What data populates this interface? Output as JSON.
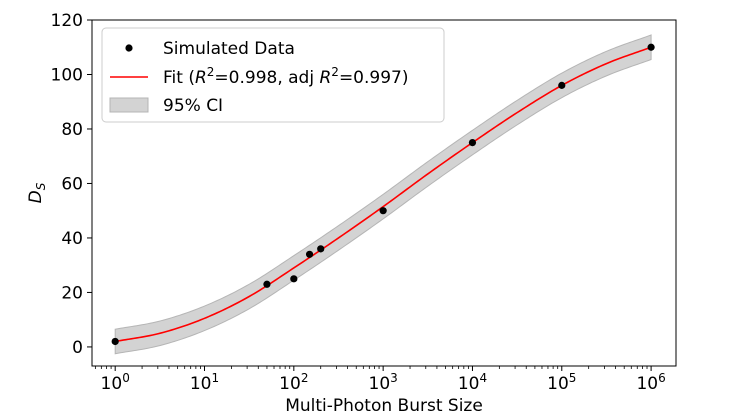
{
  "chart_data": {
    "type": "scatter",
    "xlabel": "Multi-Photon Burst Size",
    "ylabel": "D",
    "ylabel_sub": "S",
    "x_scale": "log",
    "xlim": [
      0.55,
      1900000
    ],
    "ylim": [
      -7,
      120
    ],
    "x_ticks": [
      {
        "value": 1,
        "base": "10",
        "exp": "0"
      },
      {
        "value": 10,
        "base": "10",
        "exp": "1"
      },
      {
        "value": 100,
        "base": "10",
        "exp": "2"
      },
      {
        "value": 1000,
        "base": "10",
        "exp": "3"
      },
      {
        "value": 10000,
        "base": "10",
        "exp": "4"
      },
      {
        "value": 100000,
        "base": "10",
        "exp": "5"
      },
      {
        "value": 1000000,
        "base": "10",
        "exp": "6"
      }
    ],
    "y_ticks": [
      0,
      20,
      40,
      60,
      80,
      100,
      120
    ],
    "grid": false,
    "legend": {
      "placement": "top-left",
      "items": [
        {
          "kind": "marker",
          "color": "#000000",
          "text": "Simulated Data"
        },
        {
          "kind": "line",
          "color": "#ff0000",
          "pre": "Fit (",
          "r": "R",
          "sup": "2",
          "mid": "=0.998, adj ",
          "post": "=0.997)"
        },
        {
          "kind": "band",
          "color": "#d3d3d3",
          "text": "95% CI"
        }
      ]
    },
    "scatter": {
      "name": "Simulated Data",
      "color": "#000000",
      "points": [
        {
          "x": 1,
          "y": 2
        },
        {
          "x": 50,
          "y": 23
        },
        {
          "x": 100,
          "y": 25
        },
        {
          "x": 150,
          "y": 34
        },
        {
          "x": 200,
          "y": 36
        },
        {
          "x": 1000,
          "y": 50
        },
        {
          "x": 10000,
          "y": 75
        },
        {
          "x": 100000,
          "y": 96
        },
        {
          "x": 1000000,
          "y": 110
        }
      ]
    },
    "fit": {
      "color": "#ff0000",
      "points": [
        {
          "x": 1,
          "y": 2.0
        },
        {
          "x": 3.16,
          "y": 5.0
        },
        {
          "x": 10,
          "y": 10.5
        },
        {
          "x": 31.6,
          "y": 18.5
        },
        {
          "x": 100,
          "y": 29.0
        },
        {
          "x": 316,
          "y": 40.0
        },
        {
          "x": 1000,
          "y": 51.5
        },
        {
          "x": 3162,
          "y": 63.5
        },
        {
          "x": 10000,
          "y": 75.0
        },
        {
          "x": 31623,
          "y": 86.0
        },
        {
          "x": 100000,
          "y": 96.0
        },
        {
          "x": 316228,
          "y": 104.0
        },
        {
          "x": 1000000,
          "y": 110.0
        }
      ]
    },
    "ci_band": {
      "color": "#d3d3d3",
      "half_width": 4.5
    }
  }
}
